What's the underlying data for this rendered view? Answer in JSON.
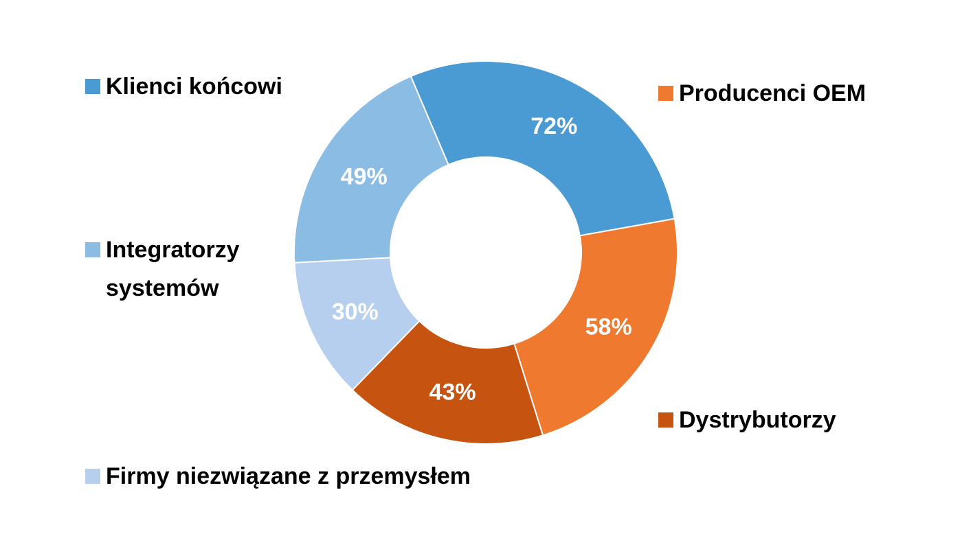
{
  "chart_data": {
    "type": "pie",
    "variant": "doughnut",
    "title": "",
    "grid": false,
    "legend_placement": "around",
    "categories": [
      "Klienci końcowi",
      "Producenci OEM",
      "Dystrybutorzy",
      "Firmy niezwiązane z przemysłem",
      "Integratorzy systemów"
    ],
    "values": [
      72,
      58,
      43,
      30,
      49
    ],
    "data_labels": [
      "72%",
      "58%",
      "43%",
      "30%",
      "49%"
    ],
    "colors": [
      "#4a9bd4",
      "#ef792f",
      "#c65410",
      "#b7cfee",
      "#8bbce4"
    ]
  }
}
